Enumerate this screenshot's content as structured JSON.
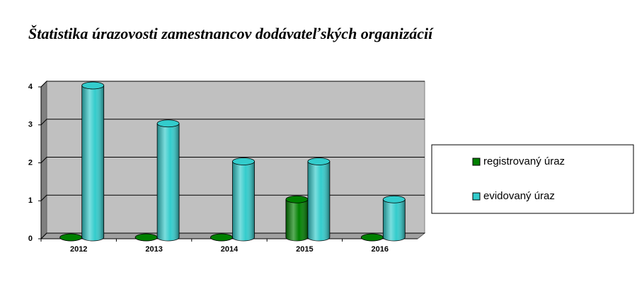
{
  "chart_data": {
    "type": "bar",
    "title": "Štatistika úrazovosti zamestnancov dodávateľských organizácií",
    "categories": [
      "2012",
      "2013",
      "2014",
      "2015",
      "2016"
    ],
    "series": [
      {
        "name": "registrovaný úraz",
        "color": "#008000",
        "values": [
          0,
          0,
          0,
          1,
          0
        ]
      },
      {
        "name": "evidovaný úraz",
        "color": "#33cccc",
        "values": [
          4,
          3,
          2,
          2,
          1
        ]
      }
    ],
    "ylim": [
      0,
      4
    ],
    "yticks": [
      0,
      1,
      2,
      3,
      4
    ],
    "grid": true,
    "legend": "right"
  }
}
